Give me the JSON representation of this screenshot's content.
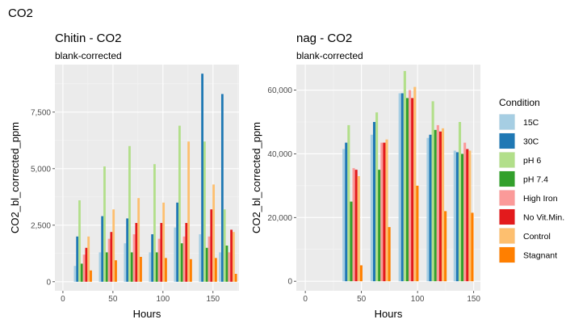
{
  "page_title": "CO2",
  "legend": {
    "title": "Condition",
    "items": [
      {
        "label": "15C",
        "color": "#A6CEE3"
      },
      {
        "label": "30C",
        "color": "#1F78B4"
      },
      {
        "label": "pH 6",
        "color": "#B2DF8A"
      },
      {
        "label": "pH 7.4",
        "color": "#33A02C"
      },
      {
        "label": "High Iron",
        "color": "#FB9A99"
      },
      {
        "label": "No Vit.Min.",
        "color": "#E31A1C"
      },
      {
        "label": "Control",
        "color": "#FDBF6F"
      },
      {
        "label": "Stagnant",
        "color": "#FF7F00"
      }
    ]
  },
  "chart_data": [
    {
      "type": "bar",
      "title": "Chitin - CO2",
      "subtitle": "blank-corrected",
      "xlabel": "Hours",
      "ylabel": "CO2_bl_corrected_ppm",
      "xlim": [
        -8,
        176
      ],
      "ylim": [
        -400,
        9600
      ],
      "xticks": [
        0,
        50,
        100,
        150
      ],
      "yticks": [
        0,
        2500,
        5000,
        7500
      ],
      "ytick_labels": [
        "0",
        "2,500",
        "5,000",
        "7,500"
      ],
      "x": [
        20,
        45,
        70,
        95,
        120,
        145,
        165
      ],
      "series": [
        {
          "name": "15C",
          "values": [
            700,
            1300,
            1700,
            1300,
            2400,
            2100,
            1300
          ]
        },
        {
          "name": "30C",
          "values": [
            2000,
            2900,
            2800,
            2100,
            3500,
            9200,
            8300
          ]
        },
        {
          "name": "pH 6",
          "values": [
            3600,
            5100,
            6000,
            5200,
            6900,
            6200,
            3200
          ]
        },
        {
          "name": "pH 7.4",
          "values": [
            800,
            1300,
            1300,
            1300,
            1700,
            1500,
            1600
          ]
        },
        {
          "name": "High Iron",
          "values": [
            1200,
            1900,
            2100,
            1900,
            2000,
            2000,
            1300
          ]
        },
        {
          "name": "No Vit.Min.",
          "values": [
            1500,
            2200,
            2600,
            2600,
            2600,
            3200,
            2300
          ]
        },
        {
          "name": "Control",
          "values": [
            2000,
            3200,
            3700,
            3500,
            6200,
            4300,
            2200
          ]
        },
        {
          "name": "Stagnant",
          "values": [
            500,
            950,
            1100,
            1050,
            1000,
            1050,
            350
          ]
        }
      ]
    },
    {
      "type": "bar",
      "title": "nag - CO2",
      "subtitle": "blank-corrected",
      "xlabel": "Hours",
      "ylabel": "CO2_bl_corrected_ppm",
      "xlim": [
        -8,
        156
      ],
      "ylim": [
        -3000,
        68000
      ],
      "xticks": [
        0,
        50,
        100,
        150
      ],
      "yticks": [
        0,
        20000,
        40000,
        60000
      ],
      "ytick_labels": [
        "0",
        "20,000",
        "40,000",
        "60,000"
      ],
      "x": [
        42,
        67,
        92,
        117,
        141
      ],
      "series": [
        {
          "name": "15C",
          "values": [
            41500,
            46000,
            59000,
            45000,
            41000
          ]
        },
        {
          "name": "30C",
          "values": [
            43500,
            50000,
            59000,
            46000,
            40500
          ]
        },
        {
          "name": "pH 6",
          "values": [
            49000,
            53000,
            66000,
            56500,
            50000
          ]
        },
        {
          "name": "pH 7.4",
          "values": [
            25000,
            35000,
            57500,
            47500,
            40000
          ]
        },
        {
          "name": "High Iron",
          "values": [
            35500,
            43500,
            60000,
            49000,
            43500
          ]
        },
        {
          "name": "No Vit.Min.",
          "values": [
            35000,
            43500,
            57500,
            47000,
            41500
          ]
        },
        {
          "name": "Control",
          "values": [
            33000,
            44500,
            61000,
            48000,
            41000
          ]
        },
        {
          "name": "Stagnant",
          "values": [
            5000,
            17000,
            30000,
            22000,
            21500
          ]
        }
      ]
    }
  ]
}
